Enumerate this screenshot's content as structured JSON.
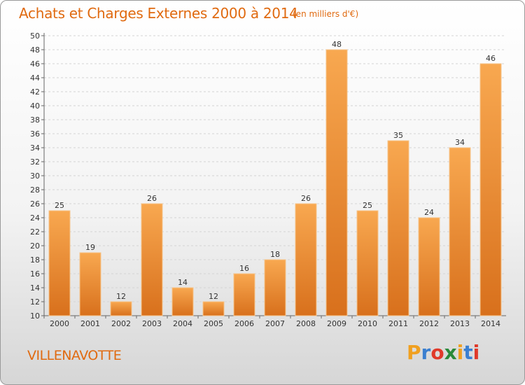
{
  "title": "Achats et Charges Externes 2000 à 2014",
  "unit": "(en milliers d'€)",
  "commune": "VILLENAVOTTE",
  "logo": {
    "letters": [
      "P",
      "r",
      "o",
      "x",
      "i",
      "t",
      "i"
    ],
    "colors": [
      "#f0a020",
      "#3b7fd0",
      "#e03a2a",
      "#2a8a3a",
      "#f0a020",
      "#3b7fd0",
      "#e03a2a"
    ]
  },
  "chart_data": {
    "type": "bar",
    "title": "Achats et Charges Externes 2000 à 2014",
    "categories": [
      "2000",
      "2001",
      "2002",
      "2003",
      "2004",
      "2005",
      "2006",
      "2007",
      "2008",
      "2009",
      "2010",
      "2011",
      "2012",
      "2013",
      "2014"
    ],
    "values": [
      25,
      19,
      12,
      26,
      14,
      12,
      16,
      18,
      26,
      48,
      25,
      35,
      24,
      34,
      46
    ],
    "ylim": [
      10,
      50
    ],
    "yticks": [
      10,
      12,
      14,
      16,
      18,
      20,
      22,
      24,
      26,
      28,
      30,
      32,
      34,
      36,
      38,
      40,
      42,
      44,
      46,
      48,
      50
    ],
    "grid": true,
    "bar_color_top": "#f8a850",
    "bar_color_bottom": "#d8701c"
  }
}
